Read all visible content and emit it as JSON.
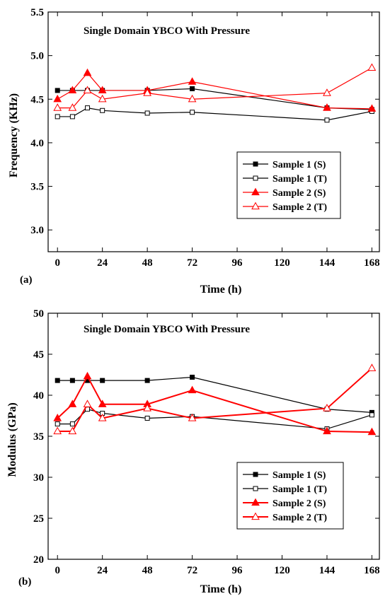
{
  "chart_data": [
    {
      "type": "line",
      "panel_label": "(a)",
      "title": "Single Domain YBCO With Pressure",
      "xlabel": "Time (h)",
      "ylabel": "Frequency (KHz)",
      "xlim": [
        -5,
        172
      ],
      "ylim": [
        2.75,
        5.5
      ],
      "x_ticks": [
        0,
        24,
        48,
        72,
        96,
        120,
        144,
        168
      ],
      "y_ticks": [
        3.0,
        3.5,
        4.0,
        4.5,
        5.0,
        5.5
      ],
      "y_tick_labels": [
        "3.0",
        "3.5",
        "4.0",
        "4.5",
        "5.0",
        "5.5"
      ],
      "legend_position": "lower-right",
      "series": [
        {
          "name": "Sample 1 (S)",
          "color": "#000000",
          "marker": "square-filled",
          "x": [
            0,
            8,
            16,
            24,
            48,
            72,
            144,
            168
          ],
          "y": [
            4.6,
            4.6,
            4.6,
            4.6,
            4.6,
            4.62,
            4.4,
            4.38
          ]
        },
        {
          "name": "Sample 1 (T)",
          "color": "#000000",
          "marker": "square-open",
          "x": [
            0,
            8,
            16,
            24,
            48,
            72,
            144,
            168
          ],
          "y": [
            4.3,
            4.3,
            4.4,
            4.37,
            4.34,
            4.35,
            4.26,
            4.36
          ]
        },
        {
          "name": "Sample 2 (S)",
          "color": "#ff0000",
          "marker": "triangle-filled",
          "x": [
            0,
            8,
            16,
            24,
            48,
            72,
            144,
            168
          ],
          "y": [
            4.5,
            4.6,
            4.8,
            4.6,
            4.6,
            4.7,
            4.4,
            4.39
          ]
        },
        {
          "name": "Sample 2 (T)",
          "color": "#ff0000",
          "marker": "triangle-open",
          "x": [
            0,
            8,
            16,
            24,
            48,
            72,
            144,
            168
          ],
          "y": [
            4.4,
            4.4,
            4.6,
            4.5,
            4.57,
            4.5,
            4.57,
            4.86
          ]
        }
      ]
    },
    {
      "type": "line",
      "panel_label": "(b)",
      "title": "Single Domain YBCO With Pressure",
      "xlabel": "Time (h)",
      "ylabel": "Modulus (GPa)",
      "xlim": [
        -5,
        172
      ],
      "ylim": [
        20,
        50
      ],
      "x_ticks": [
        0,
        24,
        48,
        72,
        96,
        120,
        144,
        168
      ],
      "y_ticks": [
        20,
        25,
        30,
        35,
        40,
        45,
        50
      ],
      "y_tick_labels": [
        "20",
        "25",
        "30",
        "35",
        "40",
        "45",
        "50"
      ],
      "legend_position": "lower-right",
      "series": [
        {
          "name": "Sample 1 (S)",
          "color": "#000000",
          "marker": "square-filled",
          "x": [
            0,
            8,
            16,
            24,
            48,
            72,
            144,
            168
          ],
          "y": [
            41.8,
            41.8,
            41.8,
            41.8,
            41.8,
            42.2,
            38.3,
            37.9
          ]
        },
        {
          "name": "Sample 1 (T)",
          "color": "#000000",
          "marker": "square-open",
          "x": [
            0,
            8,
            16,
            24,
            48,
            72,
            144,
            168
          ],
          "y": [
            36.5,
            36.5,
            38.3,
            37.8,
            37.2,
            37.4,
            35.9,
            37.6
          ]
        },
        {
          "name": "Sample 2 (S)",
          "color": "#ff0000",
          "marker": "triangle-filled",
          "x": [
            0,
            8,
            16,
            24,
            48,
            72,
            144,
            168
          ],
          "y": [
            37.2,
            38.9,
            42.3,
            38.9,
            38.9,
            40.6,
            35.6,
            35.5
          ]
        },
        {
          "name": "Sample 2 (T)",
          "color": "#ff0000",
          "marker": "triangle-open",
          "x": [
            0,
            8,
            16,
            24,
            48,
            72,
            144,
            168
          ],
          "y": [
            35.6,
            35.6,
            38.9,
            37.2,
            38.4,
            37.2,
            38.4,
            43.3
          ]
        }
      ]
    }
  ]
}
